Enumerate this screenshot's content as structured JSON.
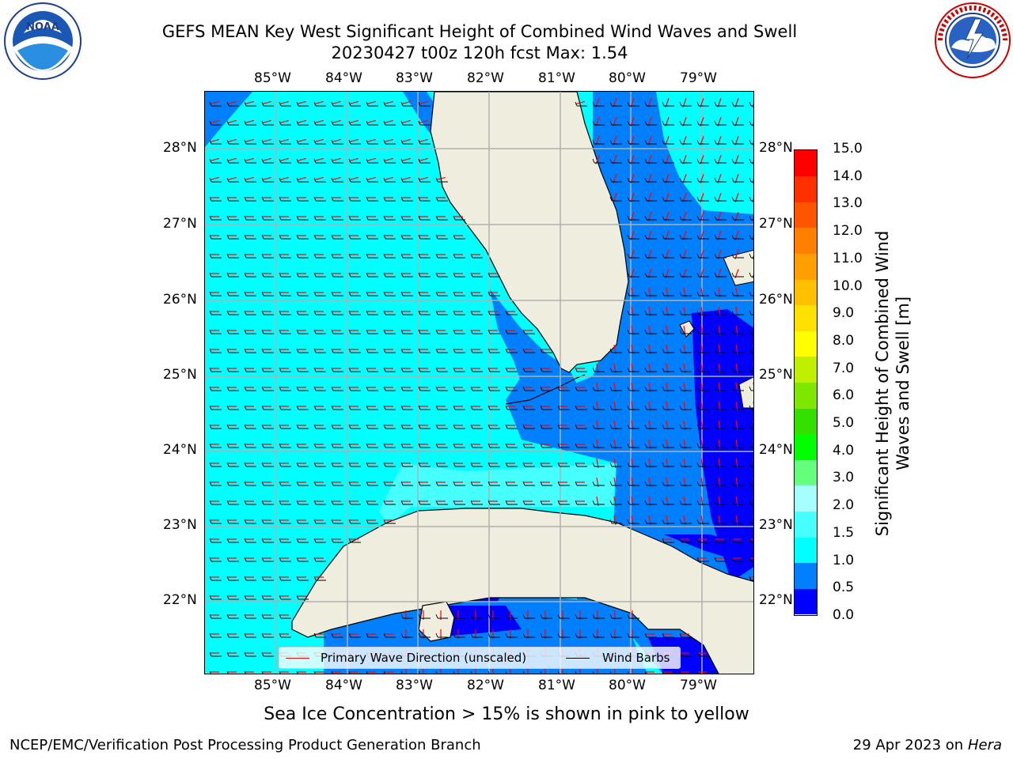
{
  "title": {
    "line1": "GEFS MEAN Key West Significant Height of Combined Wind Waves and Swell",
    "line2": "20230427 t00z 120h fcst   Max: 1.54"
  },
  "logos": {
    "left": {
      "icon": "noaa-logo-icon",
      "text": "NOAA",
      "ring_text": "NATIONAL OCEANIC AND ATMOSPHERIC ADMINISTRATION · U.S. DEPARTMENT OF COMMERCE"
    },
    "right": {
      "icon": "nws-logo-icon",
      "ring_text": "NATIONAL WEATHER SERVICE"
    }
  },
  "map": {
    "longitude_ticks": [
      "85°W",
      "84°W",
      "83°W",
      "82°W",
      "81°W",
      "80°W",
      "79°W"
    ],
    "latitude_ticks": [
      "28°N",
      "27°N",
      "26°N",
      "25°N",
      "24°N",
      "23°N",
      "22°N"
    ],
    "colors": {
      "land": "#eeedde",
      "coast": "#000000",
      "grid": "#b0b0b0"
    }
  },
  "colorbar": {
    "title": "Significant Height of Combined Wind Waves and Swell [m]",
    "levels": [
      "0.0",
      "0.5",
      "1.0",
      "1.5",
      "2.0",
      "2.5",
      "3.0",
      "4.0",
      "5.0",
      "6.0",
      "7.0",
      "8.0",
      "9.0",
      "10.0",
      "11.0",
      "12.0",
      "13.0",
      "14.0",
      "15.0"
    ],
    "label_texts": [
      "0.0",
      "0.5",
      "1.0",
      "1.5",
      "2.0",
      "3.0",
      "4.0",
      "5.0",
      "6.0",
      "7.0",
      "8.0",
      "9.0",
      "10.0",
      "11.0",
      "12.0",
      "13.0",
      "14.0",
      "15.0"
    ],
    "colors": [
      "#0000ff",
      "#0080ff",
      "#00ffff",
      "#46ffff",
      "#a5ffff",
      "#64ff7d",
      "#00ff00",
      "#34e000",
      "#7fe600",
      "#c0f000",
      "#ffff00",
      "#ffe000",
      "#ffc000",
      "#ffa000",
      "#ff8000",
      "#ff5500",
      "#ff3000",
      "#ff0000"
    ]
  },
  "legend": {
    "wave_label": "Primary Wave Direction (unscaled)",
    "wave_color": "#ff0000",
    "barb_label": "Wind Barbs",
    "barb_color": "#000000"
  },
  "subtitle": "Sea Ice Concentration > 15% is shown in pink to yellow",
  "footer": {
    "left": "NCEP/EMC/Verification Post Processing Product Generation Branch",
    "right_date": "29 Apr 2023 on",
    "right_host": "Hera"
  }
}
